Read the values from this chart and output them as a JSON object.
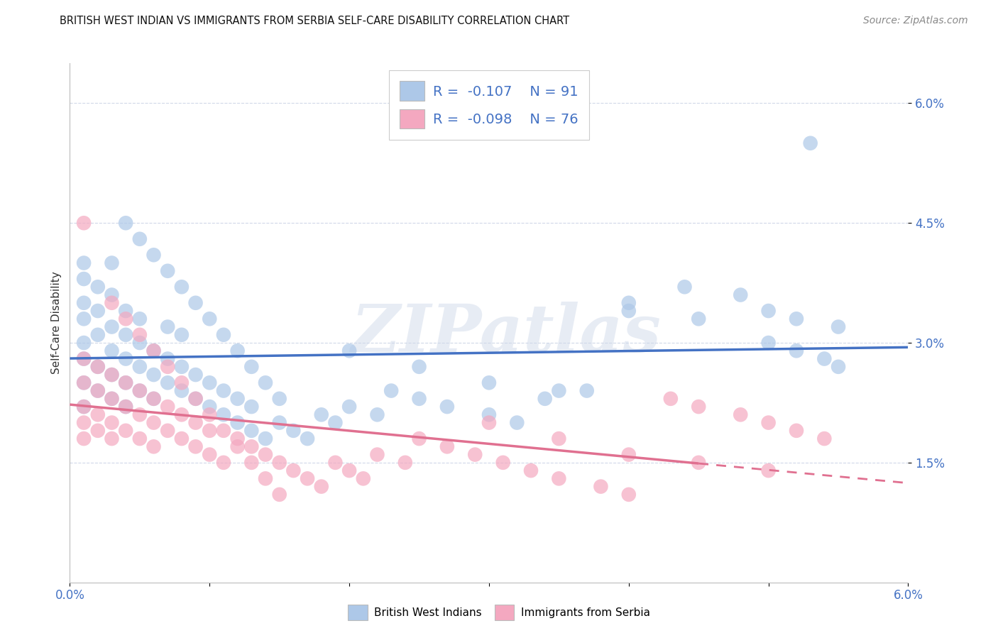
{
  "title": "BRITISH WEST INDIAN VS IMMIGRANTS FROM SERBIA SELF-CARE DISABILITY CORRELATION CHART",
  "source": "Source: ZipAtlas.com",
  "ylabel": "Self-Care Disability",
  "xlim": [
    0.0,
    0.06
  ],
  "ylim": [
    0.0,
    0.065
  ],
  "blue_color": "#adc8e8",
  "pink_color": "#f4a8c0",
  "blue_line_color": "#4472c4",
  "pink_line_color": "#e07090",
  "grid_color": "#d0d8e8",
  "bg_color": "#ffffff",
  "watermark": "ZIPatlas",
  "blue_intercept": 0.03,
  "blue_slope": -0.055,
  "pink_intercept": 0.024,
  "pink_slope": -0.12,
  "blue_x": [
    0.001,
    0.001,
    0.001,
    0.001,
    0.001,
    0.001,
    0.001,
    0.002,
    0.002,
    0.002,
    0.002,
    0.002,
    0.003,
    0.003,
    0.003,
    0.003,
    0.003,
    0.004,
    0.004,
    0.004,
    0.004,
    0.004,
    0.005,
    0.005,
    0.005,
    0.005,
    0.006,
    0.006,
    0.006,
    0.007,
    0.007,
    0.007,
    0.008,
    0.008,
    0.008,
    0.009,
    0.009,
    0.01,
    0.01,
    0.011,
    0.011,
    0.012,
    0.012,
    0.013,
    0.013,
    0.014,
    0.015,
    0.016,
    0.017,
    0.018,
    0.019,
    0.02,
    0.022,
    0.023,
    0.025,
    0.027,
    0.03,
    0.032,
    0.034,
    0.037,
    0.04,
    0.044,
    0.048,
    0.05,
    0.052,
    0.053,
    0.055,
    0.003,
    0.004,
    0.005,
    0.006,
    0.007,
    0.008,
    0.009,
    0.01,
    0.011,
    0.012,
    0.013,
    0.014,
    0.015,
    0.02,
    0.025,
    0.03,
    0.035,
    0.04,
    0.045,
    0.05,
    0.052,
    0.054,
    0.055,
    0.001
  ],
  "blue_y": [
    0.03,
    0.033,
    0.028,
    0.025,
    0.022,
    0.035,
    0.038,
    0.031,
    0.027,
    0.024,
    0.034,
    0.037,
    0.029,
    0.026,
    0.023,
    0.032,
    0.036,
    0.028,
    0.025,
    0.031,
    0.034,
    0.022,
    0.027,
    0.03,
    0.024,
    0.033,
    0.026,
    0.029,
    0.023,
    0.025,
    0.028,
    0.032,
    0.024,
    0.027,
    0.031,
    0.023,
    0.026,
    0.022,
    0.025,
    0.021,
    0.024,
    0.02,
    0.023,
    0.019,
    0.022,
    0.018,
    0.02,
    0.019,
    0.018,
    0.021,
    0.02,
    0.022,
    0.021,
    0.024,
    0.023,
    0.022,
    0.021,
    0.02,
    0.023,
    0.024,
    0.035,
    0.037,
    0.036,
    0.034,
    0.033,
    0.055,
    0.032,
    0.04,
    0.045,
    0.043,
    0.041,
    0.039,
    0.037,
    0.035,
    0.033,
    0.031,
    0.029,
    0.027,
    0.025,
    0.023,
    0.029,
    0.027,
    0.025,
    0.024,
    0.034,
    0.033,
    0.03,
    0.029,
    0.028,
    0.027,
    0.04
  ],
  "pink_x": [
    0.001,
    0.001,
    0.001,
    0.001,
    0.001,
    0.002,
    0.002,
    0.002,
    0.002,
    0.003,
    0.003,
    0.003,
    0.003,
    0.004,
    0.004,
    0.004,
    0.005,
    0.005,
    0.005,
    0.006,
    0.006,
    0.006,
    0.007,
    0.007,
    0.008,
    0.008,
    0.009,
    0.009,
    0.01,
    0.01,
    0.011,
    0.012,
    0.013,
    0.014,
    0.015,
    0.016,
    0.017,
    0.018,
    0.019,
    0.02,
    0.021,
    0.022,
    0.024,
    0.025,
    0.027,
    0.029,
    0.031,
    0.033,
    0.035,
    0.038,
    0.04,
    0.043,
    0.045,
    0.048,
    0.05,
    0.052,
    0.054,
    0.003,
    0.004,
    0.005,
    0.006,
    0.007,
    0.008,
    0.009,
    0.01,
    0.011,
    0.012,
    0.013,
    0.014,
    0.015,
    0.03,
    0.035,
    0.04,
    0.045,
    0.05,
    0.001
  ],
  "pink_y": [
    0.025,
    0.022,
    0.028,
    0.02,
    0.018,
    0.024,
    0.027,
    0.021,
    0.019,
    0.023,
    0.026,
    0.02,
    0.018,
    0.022,
    0.025,
    0.019,
    0.021,
    0.024,
    0.018,
    0.02,
    0.023,
    0.017,
    0.019,
    0.022,
    0.018,
    0.021,
    0.017,
    0.02,
    0.016,
    0.019,
    0.015,
    0.018,
    0.017,
    0.016,
    0.015,
    0.014,
    0.013,
    0.012,
    0.015,
    0.014,
    0.013,
    0.016,
    0.015,
    0.018,
    0.017,
    0.016,
    0.015,
    0.014,
    0.013,
    0.012,
    0.011,
    0.023,
    0.022,
    0.021,
    0.02,
    0.019,
    0.018,
    0.035,
    0.033,
    0.031,
    0.029,
    0.027,
    0.025,
    0.023,
    0.021,
    0.019,
    0.017,
    0.015,
    0.013,
    0.011,
    0.02,
    0.018,
    0.016,
    0.015,
    0.014,
    0.045
  ]
}
